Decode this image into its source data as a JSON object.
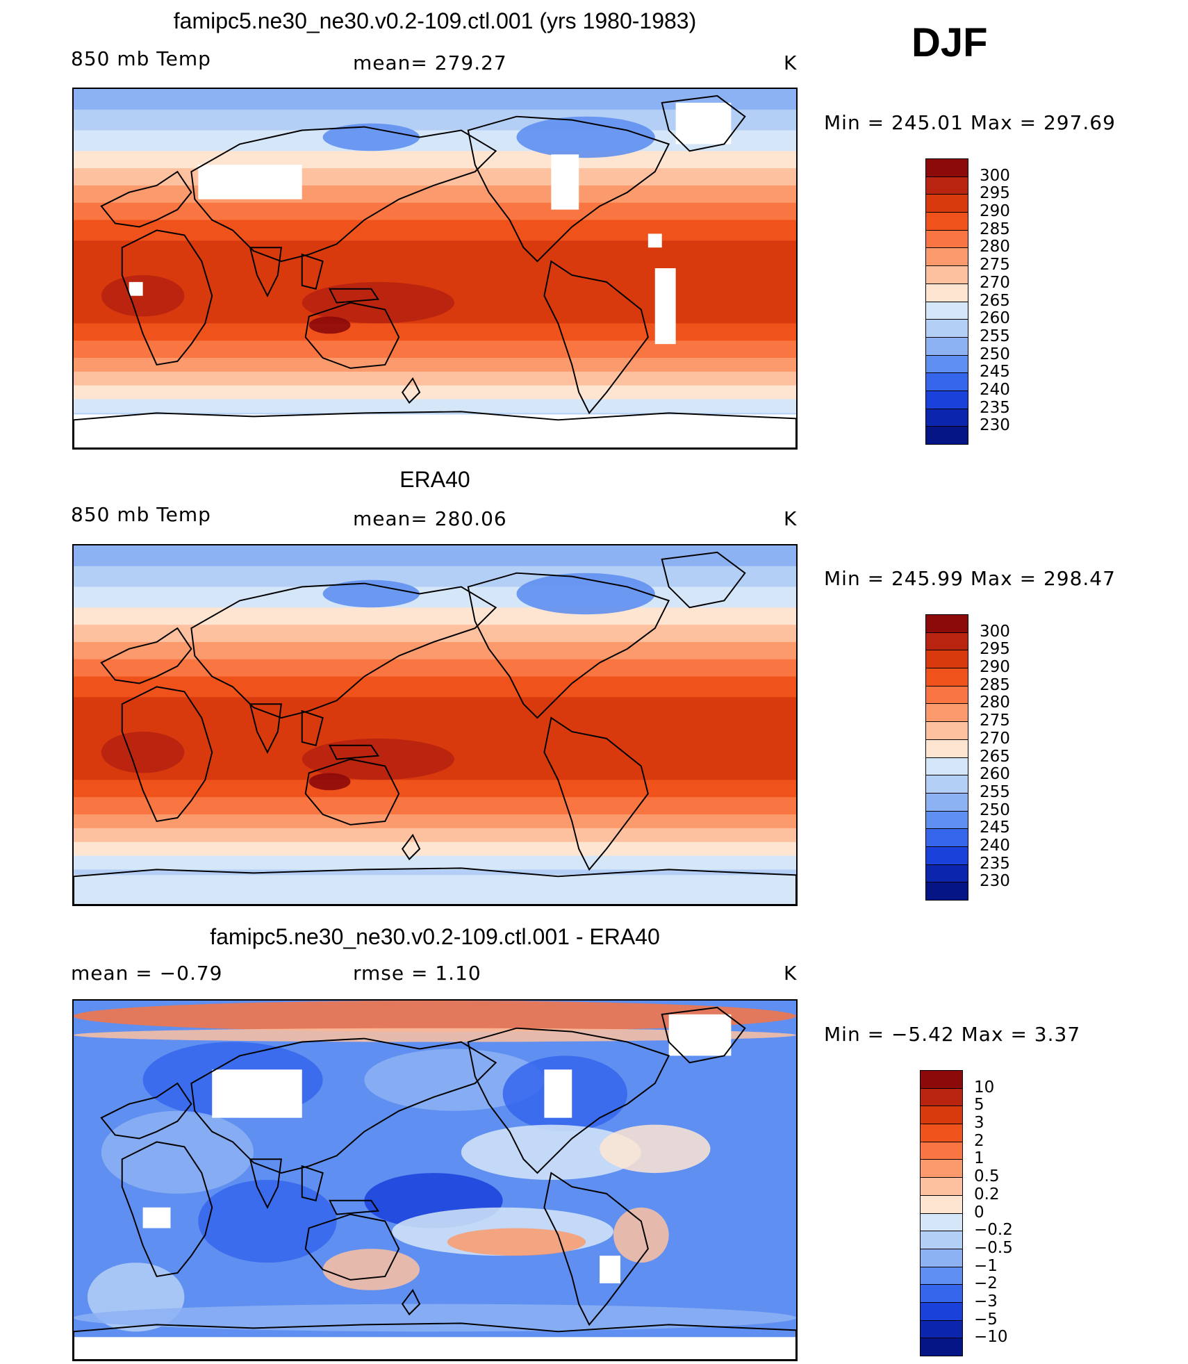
{
  "season": "DJF",
  "panels": [
    {
      "title": "famipc5.ne30_ne30.v0.2-109.ctl.001 (yrs 1980-1983)",
      "left_label": "850 mb Temp",
      "center_label": "mean= 279.27",
      "units": "K",
      "minmax": "Min = 245.01 Max = 297.69",
      "variant": "model"
    },
    {
      "title": "ERA40",
      "left_label": "850 mb Temp",
      "center_label": "mean= 280.06",
      "units": "K",
      "minmax": "Min = 245.99 Max = 298.47",
      "variant": "obs"
    },
    {
      "title": "famipc5.ne30_ne30.v0.2-109.ctl.001 - ERA40",
      "left_label": "mean =   −0.79",
      "center_label": "rmse =    1.10",
      "units": "K",
      "minmax": "Min =  −5.42 Max =     3.37",
      "variant": "diff"
    }
  ],
  "temp_colorbar": {
    "labels": [
      "300",
      "295",
      "290",
      "285",
      "280",
      "275",
      "270",
      "265",
      "260",
      "255",
      "250",
      "245",
      "240",
      "235",
      "230"
    ],
    "colors": [
      "#8c0a0a",
      "#b82410",
      "#d83a0e",
      "#f0521c",
      "#f97642",
      "#fb9a6c",
      "#fdc1a0",
      "#fee5d2",
      "#d5e6f8",
      "#b4cff6",
      "#8db2f3",
      "#5f8ff0",
      "#3566ec",
      "#1a41da",
      "#0c25ad",
      "#061585"
    ]
  },
  "diff_colorbar": {
    "labels": [
      "10",
      "5",
      "3",
      "2",
      "1",
      "0.5",
      "0.2",
      "0",
      "−0.2",
      "−0.5",
      "−1",
      "−2",
      "−3",
      "−5",
      "−10"
    ],
    "colors": [
      "#8c0a0a",
      "#b82410",
      "#d83a0e",
      "#f0521c",
      "#f97642",
      "#fb9a6c",
      "#fdc1a0",
      "#fee5d2",
      "#d5e6f8",
      "#b4cff6",
      "#8db2f3",
      "#5f8ff0",
      "#3566ec",
      "#1a41da",
      "#0c25ad",
      "#061585"
    ]
  }
}
